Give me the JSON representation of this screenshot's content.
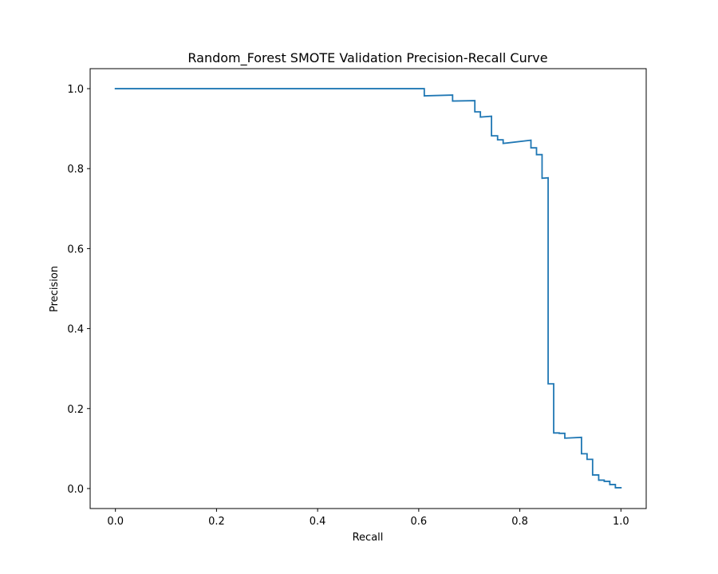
{
  "chart_data": {
    "type": "line",
    "title": "Random_Forest SMOTE Validation Precision-Recall Curve",
    "xlabel": "Recall",
    "ylabel": "Precision",
    "xlim": [
      -0.05,
      1.05
    ],
    "ylim": [
      -0.05,
      1.05
    ],
    "xticks": [
      0.0,
      0.2,
      0.4,
      0.6,
      0.8,
      1.0
    ],
    "yticks": [
      0.0,
      0.2,
      0.4,
      0.6,
      0.8,
      1.0
    ],
    "xtick_labels": [
      "0.0",
      "0.2",
      "0.4",
      "0.6",
      "0.8",
      "1.0"
    ],
    "ytick_labels": [
      "0.0",
      "0.2",
      "0.4",
      "0.6",
      "0.8",
      "1.0"
    ],
    "grid": false,
    "legend": "none",
    "series": [
      {
        "color": "#1f77b4",
        "drawstyle": "steps-post",
        "x": [
          0.0,
          0.611,
          0.611,
          0.667,
          0.667,
          0.711,
          0.711,
          0.722,
          0.722,
          0.744,
          0.744,
          0.756,
          0.756,
          0.767,
          0.767,
          0.822,
          0.822,
          0.833,
          0.833,
          0.844,
          0.844,
          0.856,
          0.856,
          0.856,
          0.856,
          0.867,
          0.867,
          0.878,
          0.878,
          0.889,
          0.889,
          0.922,
          0.922,
          0.933,
          0.933,
          0.944,
          0.944,
          0.956,
          0.956,
          0.967,
          0.967,
          0.978,
          0.978,
          0.989,
          0.989,
          1.0
        ],
        "y": [
          1.0,
          1.0,
          0.982,
          0.984,
          0.969,
          0.97,
          0.942,
          0.942,
          0.929,
          0.931,
          0.882,
          0.882,
          0.872,
          0.872,
          0.863,
          0.871,
          0.852,
          0.852,
          0.835,
          0.835,
          0.776,
          0.777,
          0.777,
          0.262,
          0.262,
          0.262,
          0.139,
          0.139,
          0.138,
          0.138,
          0.126,
          0.128,
          0.087,
          0.087,
          0.073,
          0.073,
          0.034,
          0.034,
          0.021,
          0.021,
          0.018,
          0.018,
          0.01,
          0.01,
          0.002,
          0.002
        ]
      }
    ]
  }
}
